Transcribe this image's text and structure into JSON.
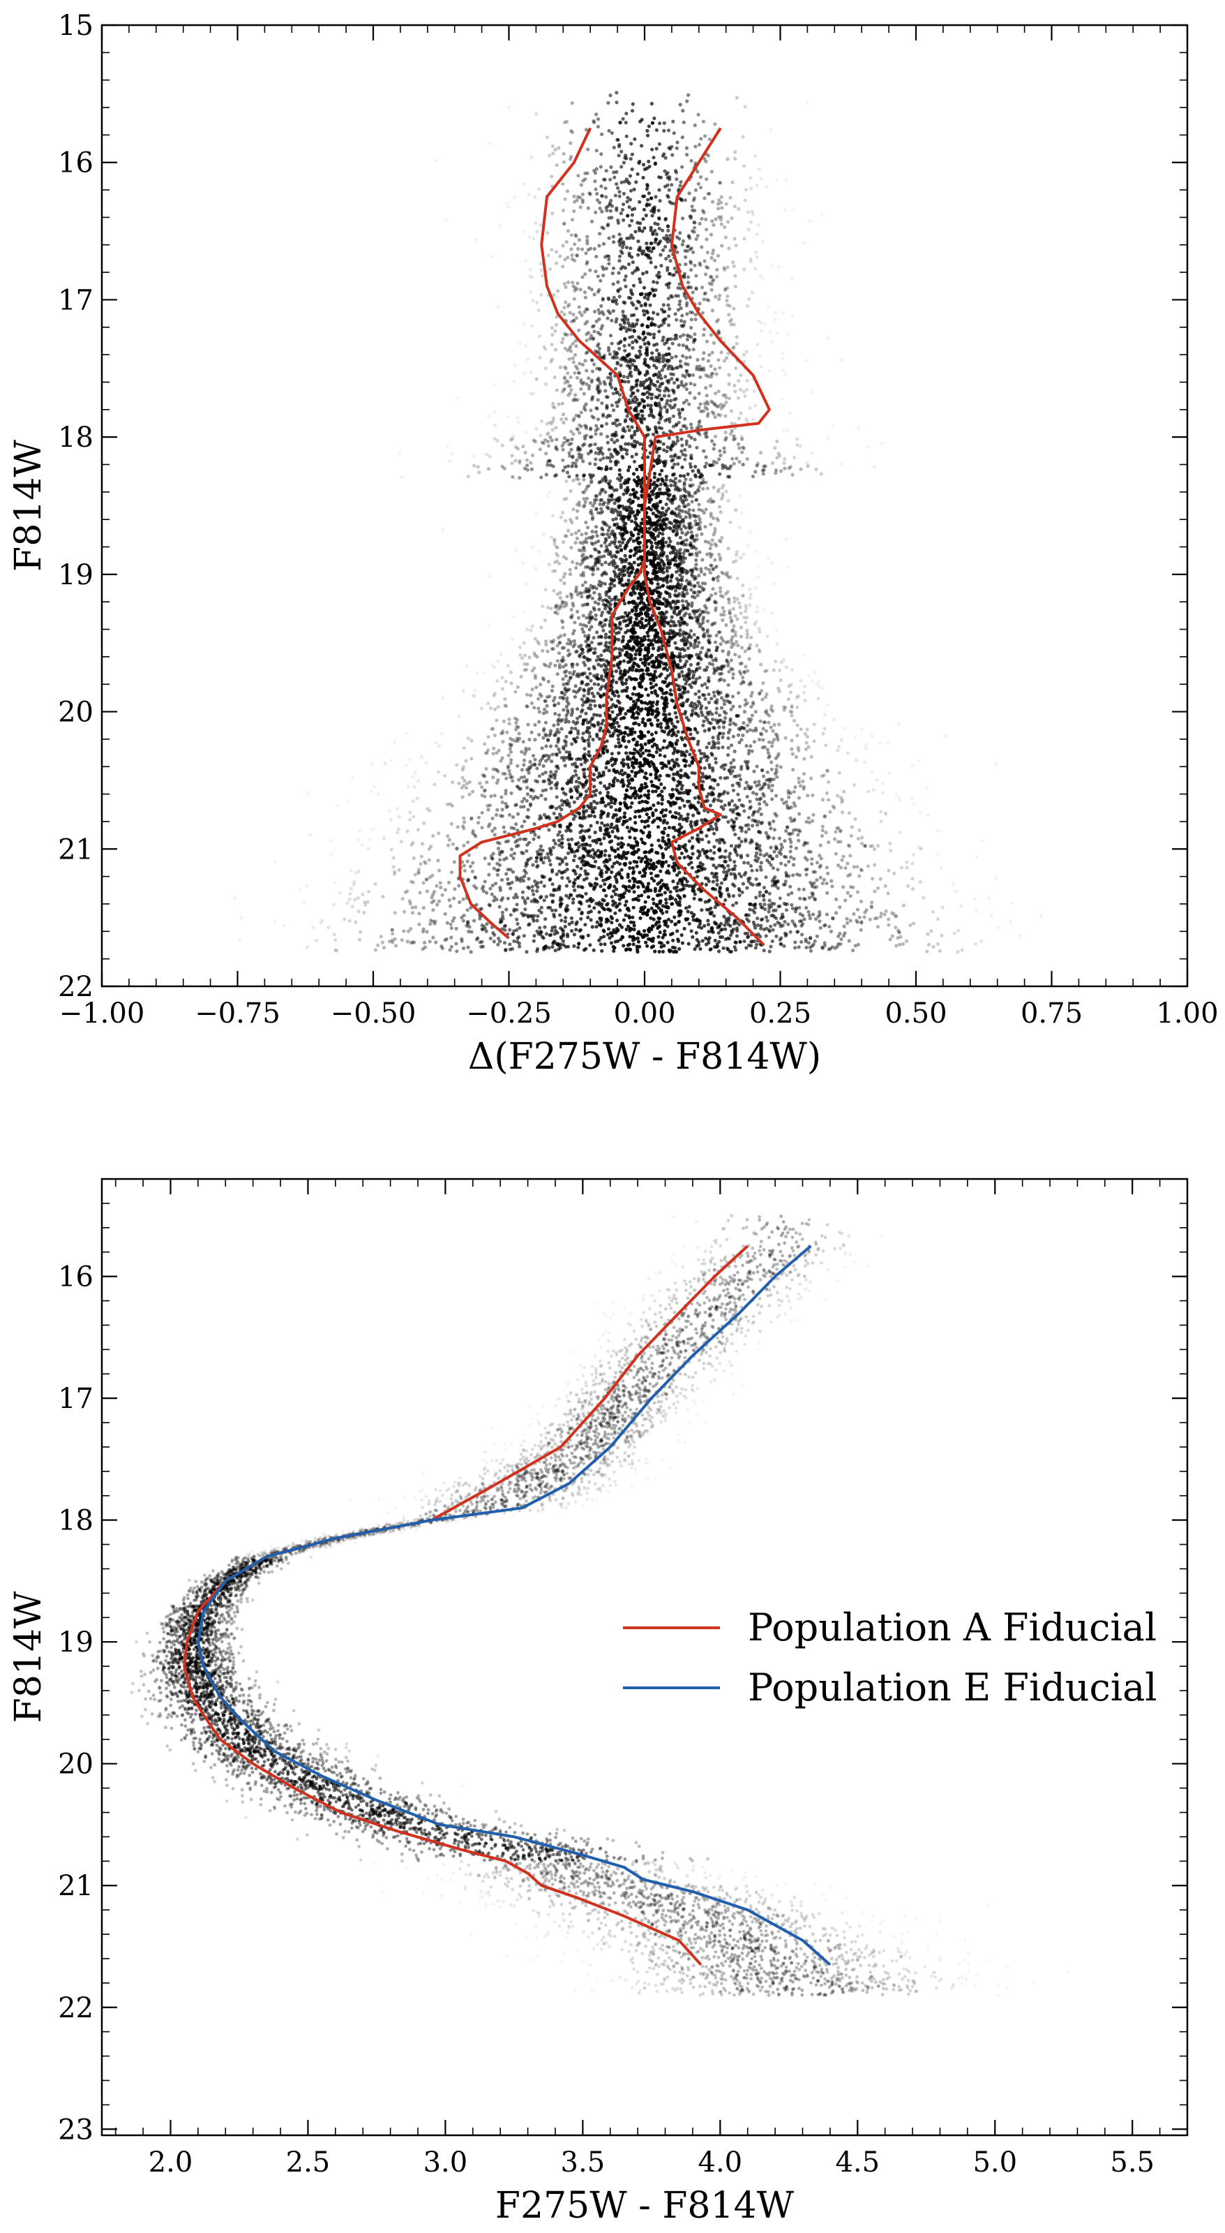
{
  "chart_data": [
    {
      "type": "scatter",
      "title": "",
      "xlabel": "Δ(F275W - F814W)",
      "ylabel": "F814W",
      "xlim": [
        -1.0,
        1.0
      ],
      "ylim": [
        22,
        15
      ],
      "y_inverted": true,
      "grid": false,
      "xticks": [
        -1.0,
        -0.75,
        -0.5,
        -0.25,
        0.0,
        0.25,
        0.5,
        0.75,
        1.0
      ],
      "xtick_labels": [
        "−1.00",
        "−0.75",
        "−0.50",
        "−0.25",
        "0.00",
        "0.25",
        "0.50",
        "0.75",
        "1.00"
      ],
      "yticks": [
        15,
        16,
        17,
        18,
        19,
        20,
        21,
        22
      ],
      "ytick_labels": [
        "15",
        "16",
        "17",
        "18",
        "19",
        "20",
        "21",
        "22"
      ],
      "point_color": "#000000",
      "line_color": "#d0321e",
      "series": [
        {
          "kind": "line",
          "color": "#d0321e",
          "x": [
            -0.1,
            -0.13,
            -0.18,
            -0.19,
            -0.18,
            -0.16,
            -0.12,
            -0.05,
            -0.03,
            0.0,
            0.0,
            0.0,
            -0.01,
            -0.03,
            -0.06,
            -0.06,
            -0.07,
            -0.07,
            -0.08,
            -0.1,
            -0.1,
            -0.12,
            -0.16,
            -0.2,
            -0.3,
            -0.34,
            -0.34,
            -0.32,
            -0.28,
            -0.25
          ],
          "y": [
            15.75,
            16.0,
            16.25,
            16.6,
            16.9,
            17.1,
            17.3,
            17.55,
            17.8,
            18.0,
            18.5,
            18.9,
            19.0,
            19.1,
            19.3,
            19.6,
            19.9,
            20.1,
            20.25,
            20.4,
            20.6,
            20.7,
            20.8,
            20.85,
            20.95,
            21.05,
            21.2,
            21.4,
            21.55,
            21.65
          ]
        },
        {
          "kind": "line",
          "color": "#d0321e",
          "x": [
            0.14,
            0.1,
            0.06,
            0.05,
            0.07,
            0.1,
            0.14,
            0.2,
            0.23,
            0.21,
            0.1,
            0.02,
            0.0,
            0.0,
            0.0,
            0.01,
            0.03,
            0.05,
            0.06,
            0.08,
            0.1,
            0.1,
            0.11,
            0.14,
            0.1,
            0.05,
            0.06,
            0.11,
            0.17,
            0.22
          ],
          "y": [
            15.75,
            16.0,
            16.25,
            16.6,
            16.9,
            17.1,
            17.3,
            17.55,
            17.8,
            17.9,
            17.95,
            18.0,
            18.5,
            18.9,
            19.0,
            19.2,
            19.4,
            19.7,
            19.95,
            20.2,
            20.4,
            20.55,
            20.7,
            20.75,
            20.85,
            20.95,
            21.1,
            21.3,
            21.5,
            21.7
          ]
        }
      ]
    },
    {
      "type": "scatter",
      "title": "",
      "xlabel": "F275W - F814W",
      "ylabel": "F814W",
      "xlim": [
        1.75,
        5.7
      ],
      "ylim": [
        23.05,
        15.2
      ],
      "y_inverted": true,
      "grid": false,
      "xticks": [
        2.0,
        2.5,
        3.0,
        3.5,
        4.0,
        4.5,
        5.0,
        5.5
      ],
      "xtick_labels": [
        "2.0",
        "2.5",
        "3.0",
        "3.5",
        "4.0",
        "4.5",
        "5.0",
        "5.5"
      ],
      "yticks": [
        16,
        17,
        18,
        19,
        20,
        21,
        22,
        23
      ],
      "ytick_labels": [
        "16",
        "17",
        "18",
        "19",
        "20",
        "21",
        "22",
        "23"
      ],
      "legend_position": "center-right",
      "series": [
        {
          "name": "Population A Fiducial",
          "kind": "line",
          "color": "#d0321e",
          "x": [
            4.1,
            3.98,
            3.85,
            3.7,
            3.58,
            3.42,
            3.15,
            2.95,
            2.6,
            2.35,
            2.2,
            2.1,
            2.06,
            2.05,
            2.08,
            2.12,
            2.18,
            2.3,
            2.45,
            2.62,
            2.82,
            3.05,
            3.22,
            3.3,
            3.35,
            3.48,
            3.65,
            3.85,
            3.93
          ],
          "y": [
            15.75,
            16.0,
            16.3,
            16.65,
            17.0,
            17.4,
            17.75,
            18.0,
            18.15,
            18.3,
            18.5,
            18.75,
            19.0,
            19.2,
            19.45,
            19.6,
            19.8,
            20.0,
            20.2,
            20.4,
            20.55,
            20.7,
            20.8,
            20.9,
            21.0,
            21.1,
            21.25,
            21.45,
            21.65
          ]
        },
        {
          "name": "Population E Fiducial",
          "kind": "line",
          "color": "#1f5fad",
          "x": [
            4.33,
            4.2,
            4.07,
            3.9,
            3.75,
            3.6,
            3.45,
            3.28,
            2.95,
            2.6,
            2.35,
            2.2,
            2.12,
            2.1,
            2.12,
            2.18,
            2.26,
            2.38,
            2.55,
            2.75,
            2.98,
            3.25,
            3.5,
            3.65,
            3.72,
            3.9,
            4.1,
            4.3,
            4.4
          ],
          "y": [
            15.75,
            16.0,
            16.3,
            16.65,
            17.0,
            17.4,
            17.7,
            17.9,
            18.0,
            18.15,
            18.3,
            18.5,
            18.75,
            19.0,
            19.2,
            19.45,
            19.65,
            19.9,
            20.1,
            20.3,
            20.5,
            20.6,
            20.75,
            20.85,
            20.95,
            21.05,
            21.2,
            21.45,
            21.65
          ]
        }
      ]
    }
  ]
}
